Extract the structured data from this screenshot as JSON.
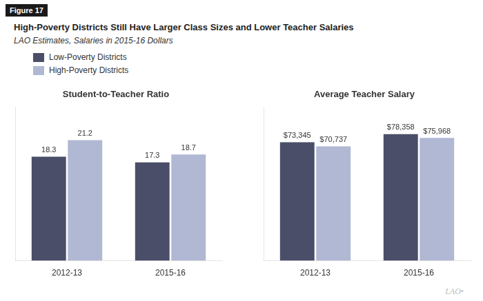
{
  "title": "High-Poverty Districts Still Have Larger Class Sizes and Lower Teacher Salaries",
  "subtitle": "LAO Estimates, Salaries in 2015-16 Dollars",
  "annotations": [
    "Figure 17",
    "LAO•"
  ],
  "chart_data": [
    {
      "type": "bar",
      "title": "Student-to-Teacher Ratio",
      "categories": [
        "2012-13",
        "2015-16"
      ],
      "series": [
        {
          "name": "Low-Poverty Districts",
          "color": "#4a4e69",
          "values": [
            18.3,
            17.3
          ]
        },
        {
          "name": "High-Poverty Districts",
          "color": "#b0b8d4",
          "values": [
            21.2,
            18.7
          ]
        }
      ],
      "ylim": [
        0,
        27
      ],
      "grid": false,
      "tick_labels": "x",
      "data_labels": true
    },
    {
      "type": "bar",
      "title": "Average Teacher Salary",
      "categories": [
        "2012-13",
        "2015-16"
      ],
      "series": [
        {
          "name": "Low-Poverty Districts",
          "color": "#4a4e69",
          "values": [
            73345,
            78358
          ],
          "value_labels": [
            "$73,345",
            "$78,358"
          ]
        },
        {
          "name": "High-Poverty Districts",
          "color": "#b0b8d4",
          "values": [
            70737,
            75968
          ],
          "value_labels": [
            "$70,737",
            "$75,968"
          ]
        }
      ],
      "ylim": [
        0,
        95000
      ],
      "grid": false,
      "tick_labels": "x",
      "data_labels": true
    }
  ]
}
